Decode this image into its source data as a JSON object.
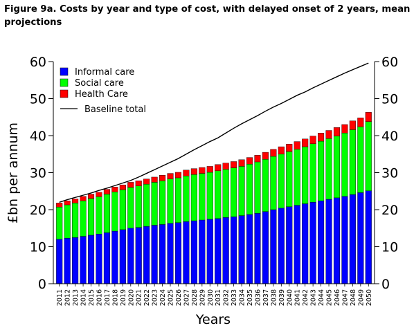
{
  "title": "Figure 9a. Costs by year and type of cost, with delayed onset of 2 years, mean projections",
  "chart_data": {
    "type": "bar",
    "stacked": true,
    "title": "Figure 9a. Costs by year and type of cost, with delayed onset of 2 years, mean projections",
    "xlabel": "Years",
    "ylabel": "£bn per annum",
    "ylim": [
      0,
      60
    ],
    "yticks": [
      0,
      10,
      20,
      30,
      40,
      50,
      60
    ],
    "secondary_yaxis": true,
    "grid": false,
    "legend_position": "top-left",
    "categories": [
      "2011",
      "2012",
      "2013",
      "2014",
      "2015",
      "2016",
      "2017",
      "2018",
      "2019",
      "2020",
      "2021",
      "2022",
      "2023",
      "2024",
      "2025",
      "2026",
      "2027",
      "2028",
      "2029",
      "2030",
      "2031",
      "2032",
      "2033",
      "2034",
      "2035",
      "2036",
      "2037",
      "2038",
      "2039",
      "2040",
      "2041",
      "2042",
      "2043",
      "2044",
      "2045",
      "2046",
      "2047",
      "2048",
      "2049",
      "2050"
    ],
    "series": [
      {
        "name": "Informal care",
        "color": "#0000ff",
        "values": [
          12.0,
          12.3,
          12.5,
          12.8,
          13.1,
          13.4,
          13.8,
          14.2,
          14.6,
          15.0,
          15.2,
          15.5,
          15.8,
          16.0,
          16.3,
          16.5,
          16.8,
          17.0,
          17.2,
          17.4,
          17.6,
          17.9,
          18.1,
          18.4,
          18.7,
          19.0,
          19.5,
          20.0,
          20.4,
          20.8,
          21.2,
          21.6,
          22.0,
          22.4,
          22.8,
          23.2,
          23.6,
          24.1,
          24.6,
          25.1
        ]
      },
      {
        "name": "Social care",
        "color": "#00ff00",
        "values": [
          8.7,
          9.0,
          9.3,
          9.6,
          9.9,
          10.1,
          10.4,
          10.6,
          10.8,
          11.0,
          11.2,
          11.4,
          11.6,
          11.8,
          12.0,
          12.1,
          12.3,
          12.5,
          12.6,
          12.7,
          12.9,
          13.0,
          13.2,
          13.3,
          13.6,
          13.9,
          14.1,
          14.4,
          14.6,
          14.9,
          15.1,
          15.4,
          15.8,
          16.1,
          16.4,
          16.7,
          17.1,
          17.5,
          17.8,
          18.7
        ]
      },
      {
        "name": "Health Care",
        "color": "#ff0000",
        "values": [
          1.1,
          1.1,
          1.1,
          1.2,
          1.2,
          1.2,
          1.3,
          1.3,
          1.3,
          1.4,
          1.4,
          1.4,
          1.4,
          1.5,
          1.5,
          1.5,
          1.6,
          1.6,
          1.6,
          1.6,
          1.7,
          1.7,
          1.7,
          1.8,
          1.8,
          1.8,
          1.9,
          1.9,
          2.0,
          2.0,
          2.1,
          2.1,
          2.1,
          2.2,
          2.2,
          2.3,
          2.3,
          2.4,
          2.4,
          2.5
        ]
      },
      {
        "name": "Baseline total",
        "type": "line",
        "color": "#000000",
        "values": [
          22.0,
          22.7,
          23.3,
          23.9,
          24.5,
          25.2,
          25.8,
          26.5,
          27.2,
          27.9,
          28.8,
          29.8,
          30.8,
          31.8,
          32.8,
          33.8,
          35.0,
          36.2,
          37.3,
          38.4,
          39.4,
          40.7,
          42.0,
          43.2,
          44.3,
          45.4,
          46.6,
          47.7,
          48.7,
          49.8,
          50.9,
          51.8,
          52.9,
          53.9,
          54.9,
          55.9,
          56.9,
          57.8,
          58.7,
          59.6
        ]
      }
    ],
    "legend": {
      "informal": "Informal care",
      "social": "Social care",
      "health": "Health Care",
      "baseline": "Baseline total"
    }
  }
}
